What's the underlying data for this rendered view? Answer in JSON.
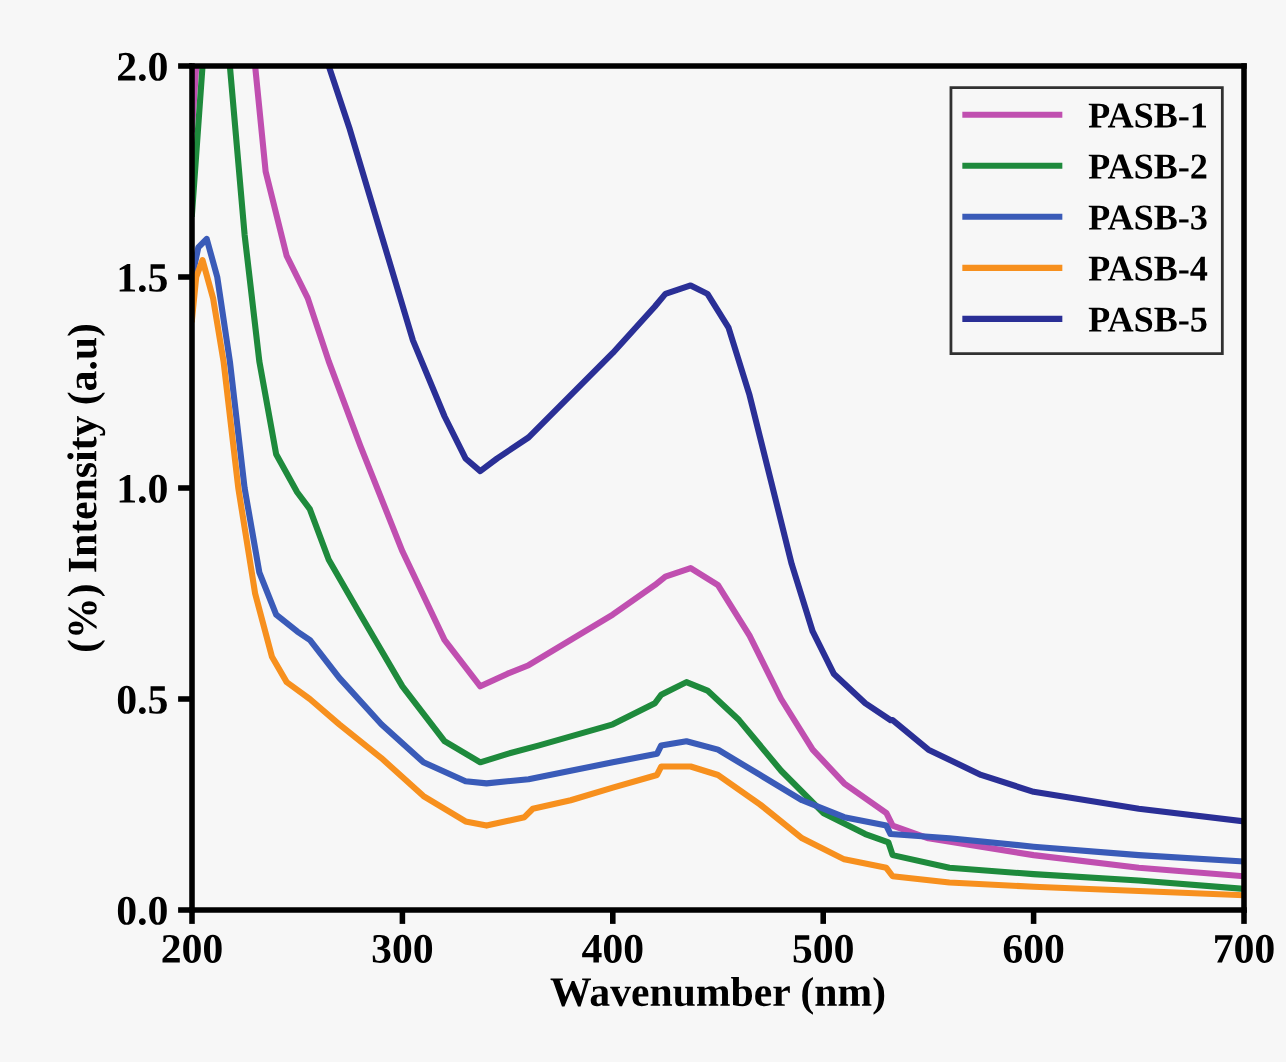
{
  "chart_data": {
    "type": "line",
    "xlabel": "Wavenumber (nm)",
    "ylabel": "(%) Intensity (a.u)",
    "xlim": [
      200,
      700
    ],
    "xticks": [
      200,
      300,
      400,
      500,
      600,
      700
    ],
    "ylim": [
      0,
      2.0
    ],
    "yticks": [
      {
        "value": 0,
        "label": "0.0"
      },
      0.5,
      {
        "value": 1,
        "label": "1.0"
      },
      1.5,
      {
        "value": 2,
        "label": "2.0"
      }
    ],
    "grid": false,
    "legend": "top right",
    "marker": "none",
    "line_style": "solid",
    "series": [
      {
        "name": "PASB-1",
        "color": "#c04fb0",
        "x": [
          200,
          202,
          215,
          230,
          235,
          245,
          255,
          265,
          280,
          300,
          320,
          337,
          350,
          360,
          380,
          400,
          420,
          425,
          437,
          450,
          465,
          480,
          495,
          510,
          530,
          533,
          550,
          600,
          650,
          700
        ],
        "values": [
          1.85,
          2.0,
          null,
          2.0,
          1.75,
          1.55,
          1.45,
          1.3,
          1.1,
          0.85,
          0.64,
          0.53,
          0.56,
          0.58,
          0.64,
          0.7,
          0.77,
          0.79,
          0.81,
          0.77,
          0.65,
          0.5,
          0.38,
          0.3,
          0.23,
          0.2,
          0.17,
          0.13,
          0.1,
          0.08
        ]
      },
      {
        "name": "PASB-2",
        "color": "#1e8a3c",
        "x": [
          200,
          205,
          210,
          218,
          225,
          232,
          240,
          250,
          256,
          265,
          280,
          300,
          320,
          337,
          350,
          365,
          400,
          420,
          423,
          435,
          445,
          460,
          480,
          500,
          520,
          531,
          533,
          560,
          600,
          650,
          700
        ],
        "values": [
          1.65,
          2.0,
          null,
          2.0,
          1.6,
          1.3,
          1.08,
          0.99,
          0.95,
          0.83,
          0.7,
          0.53,
          0.4,
          0.35,
          0.37,
          0.39,
          0.44,
          0.49,
          0.51,
          0.54,
          0.52,
          0.45,
          0.33,
          0.23,
          0.18,
          0.16,
          0.13,
          0.1,
          0.085,
          0.07,
          0.05
        ]
      },
      {
        "name": "PASB-3",
        "color": "#3a5bb8",
        "x": [
          200,
          203,
          207,
          212,
          218,
          225,
          232,
          240,
          250,
          256,
          270,
          290,
          310,
          330,
          340,
          360,
          380,
          400,
          421,
          423,
          435,
          450,
          470,
          490,
          510,
          530,
          532,
          560,
          600,
          650,
          700
        ],
        "values": [
          1.5,
          1.57,
          1.59,
          1.5,
          1.3,
          1.0,
          0.8,
          0.7,
          0.66,
          0.64,
          0.55,
          0.44,
          0.35,
          0.305,
          0.3,
          0.31,
          0.33,
          0.35,
          0.37,
          0.39,
          0.4,
          0.38,
          0.32,
          0.26,
          0.22,
          0.2,
          0.18,
          0.17,
          0.15,
          0.13,
          0.115
        ]
      },
      {
        "name": "PASB-4",
        "color": "#f7901e",
        "x": [
          200,
          202,
          205,
          210,
          215,
          222,
          230,
          238,
          245,
          256,
          270,
          290,
          310,
          330,
          340,
          358,
          362,
          380,
          400,
          421,
          423,
          437,
          450,
          470,
          490,
          510,
          530,
          533,
          560,
          600,
          650,
          700
        ],
        "values": [
          1.4,
          1.5,
          1.54,
          1.45,
          1.3,
          1.0,
          0.75,
          0.6,
          0.54,
          0.5,
          0.44,
          0.36,
          0.27,
          0.21,
          0.2,
          0.22,
          0.24,
          0.26,
          0.29,
          0.32,
          0.34,
          0.34,
          0.32,
          0.25,
          0.17,
          0.12,
          0.1,
          0.08,
          0.065,
          0.055,
          0.045,
          0.035
        ]
      },
      {
        "name": "PASB-5",
        "color": "#2a2f96",
        "x": [
          265,
          275,
          290,
          305,
          320,
          330,
          337,
          345,
          360,
          380,
          400,
          420,
          425,
          437,
          445,
          455,
          465,
          475,
          485,
          495,
          505,
          520,
          532,
          533,
          550,
          575,
          600,
          650,
          700
        ],
        "values": [
          2.0,
          1.85,
          1.6,
          1.35,
          1.17,
          1.07,
          1.04,
          1.07,
          1.12,
          1.22,
          1.32,
          1.43,
          1.46,
          1.48,
          1.46,
          1.38,
          1.22,
          1.02,
          0.82,
          0.66,
          0.56,
          0.49,
          0.45,
          0.45,
          0.38,
          0.32,
          0.28,
          0.24,
          0.21
        ]
      }
    ]
  }
}
